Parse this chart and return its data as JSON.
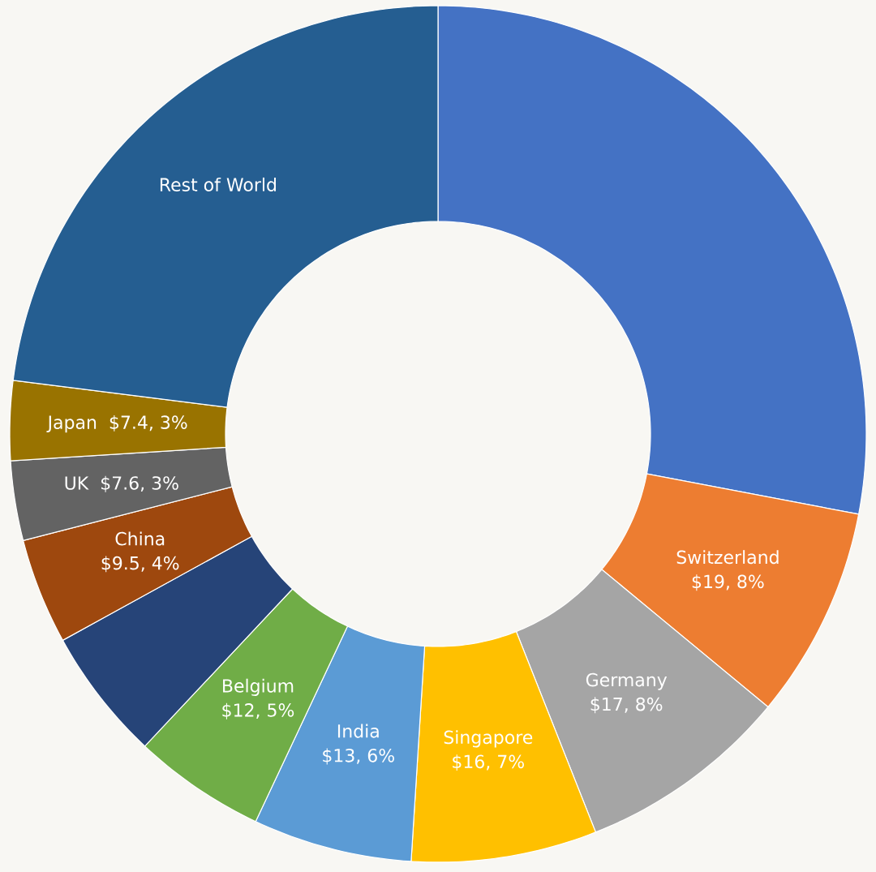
{
  "chart_data": {
    "type": "donut",
    "categories": [
      null,
      "Switzerland",
      "Germany",
      "Singapore",
      "India",
      "Belgium",
      null,
      "China",
      "UK",
      "Japan",
      "Rest of World"
    ],
    "values": [
      28,
      8,
      8,
      7,
      6,
      5,
      5,
      4,
      3,
      3,
      23
    ],
    "value_labels": [
      null,
      "$19, 8%",
      "$17, 8%",
      "$16, 7%",
      "$13, 6%",
      "$12, 5%",
      null,
      "$9.5, 4%",
      "$7.6, 3%",
      "$7.4, 3%",
      null
    ],
    "colors": [
      "#4472c4",
      "#ed7d31",
      "#a5a5a5",
      "#ffc000",
      "#5b9bd5",
      "#70ad47",
      "#264478",
      "#9e480e",
      "#636363",
      "#997300",
      "#255e91"
    ]
  }
}
